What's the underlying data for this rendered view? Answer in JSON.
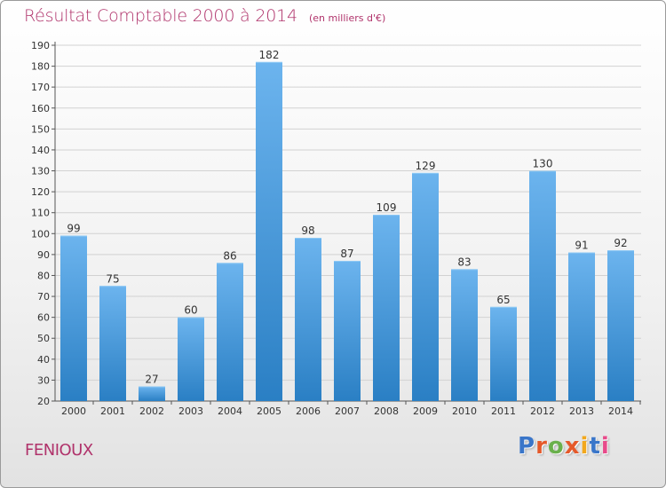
{
  "header": {
    "title": "Résultat Comptable 2000 à 2014",
    "subtitle": "(en milliers d'€)"
  },
  "footer": {
    "commune": "FENIOUX",
    "logo_text": "Proxiti"
  },
  "colors": {
    "title": "#b0336b",
    "bar_top": "#6cb4ee",
    "bar_bottom": "#2a7fc4",
    "logo": [
      "#3a76c9",
      "#e5592a",
      "#6ab04c",
      "#e5592a",
      "#f2a81d",
      "#3a76c9",
      "#e84a8a"
    ]
  },
  "chart_data": {
    "type": "bar",
    "title": "Résultat Comptable 2000 à 2014",
    "subtitle": "(en milliers d'€)",
    "xlabel": "",
    "ylabel": "",
    "categories": [
      "2000",
      "2001",
      "2002",
      "2003",
      "2004",
      "2005",
      "2006",
      "2007",
      "2008",
      "2009",
      "2010",
      "2011",
      "2012",
      "2013",
      "2014"
    ],
    "values": [
      99,
      75,
      27,
      60,
      86,
      182,
      98,
      87,
      109,
      129,
      83,
      65,
      130,
      91,
      92
    ],
    "ylim": [
      20,
      190
    ],
    "yticks": [
      20,
      30,
      40,
      50,
      60,
      70,
      80,
      90,
      100,
      110,
      120,
      130,
      140,
      150,
      160,
      170,
      180,
      190
    ],
    "grid": true,
    "legend": "none"
  }
}
